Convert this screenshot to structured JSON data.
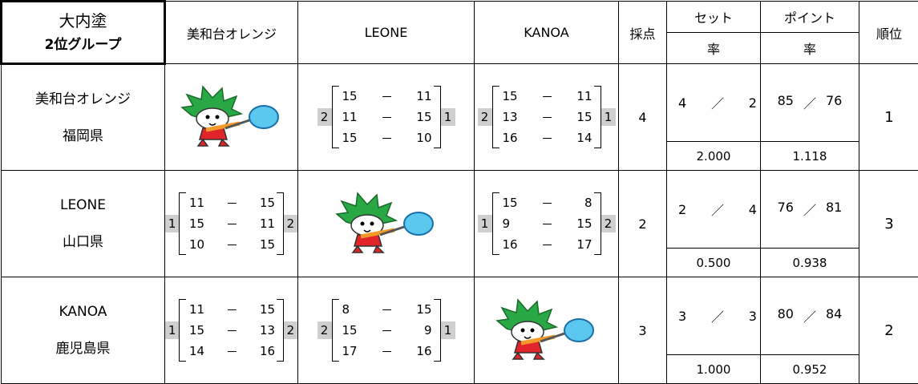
{
  "header": {
    "title": "大内塗",
    "subtitle": "2位グループ",
    "columns": [
      "美和台オレンジ",
      "LEONE",
      "KANOA"
    ],
    "score": "採点",
    "set": "セット",
    "set_rate": "率",
    "point": "ポイント",
    "point_rate": "率",
    "rank": "順位"
  },
  "separator": "／",
  "dash": "－",
  "rows": [
    {
      "team": "美和台オレンジ",
      "pref": "福岡県",
      "matches": [
        null,
        {
          "left": 2,
          "right": 1,
          "games": [
            [
              15,
              11
            ],
            [
              11,
              15
            ],
            [
              15,
              10
            ]
          ]
        },
        {
          "left": 2,
          "right": 1,
          "games": [
            [
              15,
              11
            ],
            [
              13,
              15
            ],
            [
              16,
              14
            ]
          ]
        }
      ],
      "score": 4,
      "sets_won": 4,
      "sets_lost": 2,
      "set_rate": "2.000",
      "points_won": 85,
      "points_lost": 76,
      "point_rate": "1.118",
      "rank": 1
    },
    {
      "team": "LEONE",
      "pref": "山口県",
      "matches": [
        {
          "left": 1,
          "right": 2,
          "games": [
            [
              11,
              15
            ],
            [
              15,
              11
            ],
            [
              10,
              15
            ]
          ]
        },
        null,
        {
          "left": 1,
          "right": 2,
          "games": [
            [
              15,
              8
            ],
            [
              9,
              15
            ],
            [
              16,
              17
            ]
          ]
        }
      ],
      "score": 2,
      "sets_won": 2,
      "sets_lost": 4,
      "set_rate": "0.500",
      "points_won": 76,
      "points_lost": 81,
      "point_rate": "0.938",
      "rank": 3
    },
    {
      "team": "KANOA",
      "pref": "鹿児島県",
      "matches": [
        {
          "left": 1,
          "right": 2,
          "games": [
            [
              11,
              15
            ],
            [
              15,
              13
            ],
            [
              14,
              16
            ]
          ]
        },
        {
          "left": 2,
          "right": 1,
          "games": [
            [
              8,
              15
            ],
            [
              15,
              9
            ],
            [
              17,
              16
            ]
          ]
        },
        null
      ],
      "score": 3,
      "sets_won": 3,
      "sets_lost": 3,
      "set_rate": "1.000",
      "points_won": 80,
      "points_lost": 84,
      "point_rate": "0.952",
      "rank": 2
    }
  ]
}
